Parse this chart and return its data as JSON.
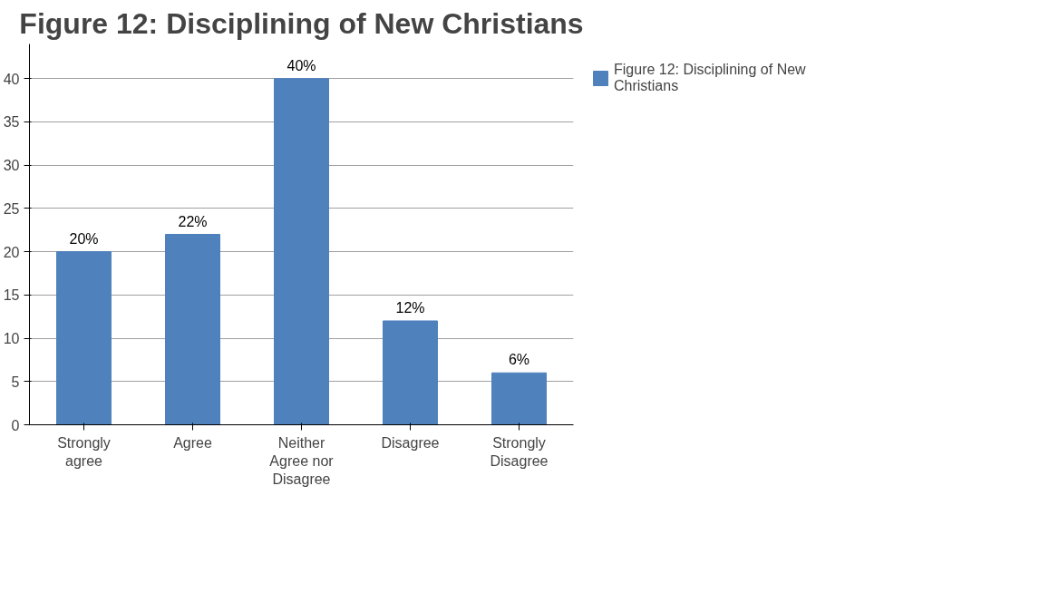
{
  "chart_data": {
    "type": "bar",
    "title": "Figure 12: Disciplining of New Christians",
    "categories": [
      "Strongly agree",
      "Agree",
      "Neither Agree nor Disagree",
      "Disagree",
      "Strongly Disagree"
    ],
    "series": [
      {
        "name": "Figure 12: Disciplining of New Christians",
        "color": "#4f81bd",
        "values": [
          20,
          22,
          40,
          12,
          6
        ],
        "value_labels": [
          "20%",
          "22%",
          "40%",
          "12%",
          "6%"
        ]
      }
    ],
    "ylim": [
      0,
      44
    ],
    "yticks": [
      0,
      5,
      10,
      15,
      20,
      25,
      30,
      35,
      40
    ],
    "grid": "y",
    "legend": "right"
  }
}
